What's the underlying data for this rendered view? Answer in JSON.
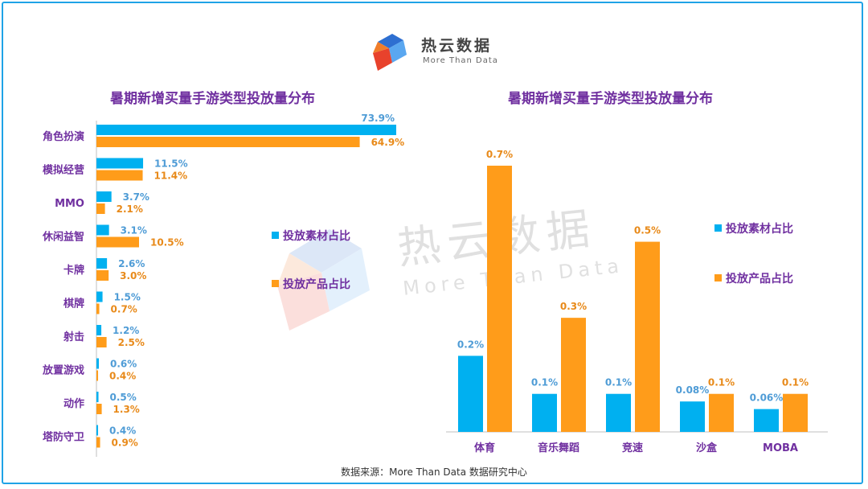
{
  "logo": {
    "name": "热云数据",
    "tagline": "More Than Data"
  },
  "colors": {
    "material": "#00b0f0",
    "product": "#ff9c1a",
    "title": "#7030a0",
    "material_label": "#4f9cd6",
    "product_label": "#e88a1a",
    "frame": "#1fa3e6"
  },
  "watermark": {
    "text": "热云数据",
    "sub": "More Than Data"
  },
  "legend": {
    "material": "投放素材占比",
    "product": "投放产品占比"
  },
  "source": "数据来源：More Than Data 数据研究中心",
  "chart_data": [
    {
      "type": "bar",
      "orientation": "horizontal",
      "title": "暑期新增买量手游类型投放量分布",
      "categories": [
        "角色扮演",
        "模拟经营",
        "MMO",
        "休闲益智",
        "卡牌",
        "棋牌",
        "射击",
        "放置游戏",
        "动作",
        "塔防守卫"
      ],
      "series": [
        {
          "name": "投放素材占比",
          "values": [
            73.9,
            11.5,
            3.7,
            3.1,
            2.6,
            1.5,
            1.2,
            0.6,
            0.5,
            0.4
          ],
          "labels": [
            "73.9%",
            "11.5%",
            "3.7%",
            "3.1%",
            "2.6%",
            "1.5%",
            "1.2%",
            "0.6%",
            "0.5%",
            "0.4%"
          ]
        },
        {
          "name": "投放产品占比",
          "values": [
            64.9,
            11.4,
            2.1,
            10.5,
            3.0,
            0.7,
            2.5,
            0.4,
            1.3,
            0.9
          ],
          "labels": [
            "64.9%",
            "11.4%",
            "2.1%",
            "10.5%",
            "3.0%",
            "0.7%",
            "2.5%",
            "0.4%",
            "1.3%",
            "0.9%"
          ]
        }
      ],
      "xlim": [
        0,
        73.9
      ],
      "legend": "right"
    },
    {
      "type": "bar",
      "orientation": "vertical",
      "title": "暑期新增买量手游类型投放量分布",
      "categories": [
        "体育",
        "音乐舞蹈",
        "竞速",
        "沙盒",
        "MOBA"
      ],
      "series": [
        {
          "name": "投放素材占比",
          "values": [
            0.2,
            0.1,
            0.1,
            0.08,
            0.06
          ],
          "labels": [
            "0.2%",
            "0.1%",
            "0.1%",
            "0.08%",
            "0.06%"
          ]
        },
        {
          "name": "投放产品占比",
          "values": [
            0.7,
            0.3,
            0.5,
            0.1,
            0.1
          ],
          "labels": [
            "0.7%",
            "0.3%",
            "0.5%",
            "0.1%",
            "0.1%"
          ]
        }
      ],
      "ylim": [
        0,
        0.7
      ],
      "legend": "right"
    }
  ]
}
